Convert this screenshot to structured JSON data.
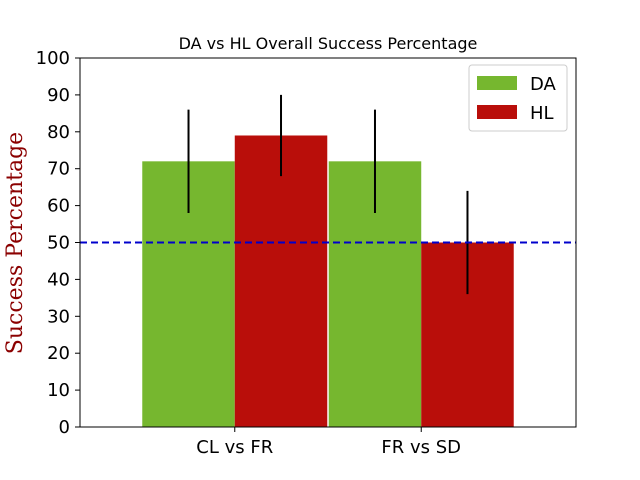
{
  "chart_data": {
    "type": "bar",
    "title": "DA vs HL Overall Success Percentage",
    "xlabel": "",
    "ylabel": "Success Percentage",
    "ylabel_color": "#8b0000",
    "categories": [
      "CL vs FR",
      "FR vs SD"
    ],
    "series": [
      {
        "name": "DA",
        "color": "#76b72f",
        "values": [
          72,
          72
        ],
        "error_low": [
          58,
          58
        ],
        "error_high": [
          86,
          86
        ]
      },
      {
        "name": "HL",
        "color": "#b90e0a",
        "values": [
          79,
          50
        ],
        "error_low": [
          68,
          36
        ],
        "error_high": [
          90,
          64
        ]
      }
    ],
    "ylim": [
      0,
      100
    ],
    "yticks": [
      0,
      10,
      20,
      30,
      40,
      50,
      60,
      70,
      80,
      90,
      100
    ],
    "reference_line": {
      "value": 50,
      "color": "#0000cc",
      "style": "dashed"
    },
    "grid": false,
    "legend_position": "top-right"
  }
}
